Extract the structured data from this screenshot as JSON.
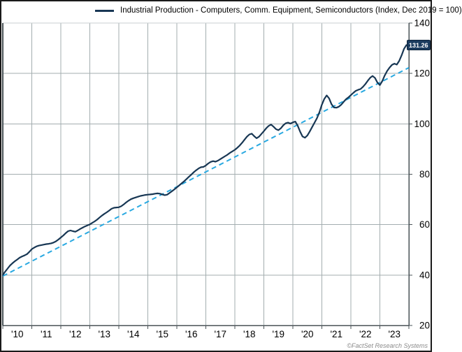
{
  "legend": {
    "label": "Industrial Production - Computers, Comm. Equipment, Semiconductors (Index, Dec 2019 = 100)"
  },
  "footer": {
    "copyright": "©FactSet Research Systems"
  },
  "colors": {
    "series": "#183754",
    "trend": "#29A9E1",
    "grid": "#A3ADAF",
    "grid_top": "#C9CFD1",
    "axis": "#4A5357",
    "badge_bg": "#1B3C5F",
    "badge_border": "#0F263D",
    "label": "#000000"
  },
  "chart_data": {
    "type": "line",
    "title": "Industrial Production - Computers, Comm. Equipment, Semiconductors (Index, Dec 2019 = 100)",
    "xlabel": "",
    "ylabel": "",
    "x_range": [
      2010,
      2024
    ],
    "y_range": [
      20,
      140
    ],
    "grid": true,
    "legend_position": "top",
    "y_ticks": {
      "values": [
        20,
        40,
        60,
        80,
        100,
        120,
        140
      ],
      "labels": [
        "20",
        "40",
        "60",
        "80",
        "100",
        "120",
        "140"
      ]
    },
    "x_ticks": {
      "centers": [
        2010.5,
        2011.5,
        2012.5,
        2013.5,
        2014.5,
        2015.5,
        2016.5,
        2017.5,
        2018.5,
        2019.5,
        2020.5,
        2021.5,
        2022.5,
        2023.5
      ],
      "labels": [
        "'10",
        "'11",
        "'12",
        "'13",
        "'14",
        "'15",
        "'16",
        "'17",
        "'18",
        "'19",
        "'20",
        "'21",
        "'22",
        "'23"
      ],
      "gridline_years": [
        2010,
        2011,
        2012,
        2013,
        2014,
        2015,
        2016,
        2017,
        2018,
        2019,
        2020,
        2021,
        2022,
        2023,
        2024
      ]
    },
    "last_value": {
      "label": "131.26",
      "value": 131.26
    },
    "series": [
      {
        "name": "Industrial Production - Computers, Comm. Equipment, Semiconductors",
        "index_note": "Index, Dec 2019 = 100",
        "x_start": 2010.0,
        "x_step_months": 1,
        "values": [
          40.0,
          41.4,
          42.6,
          43.8,
          44.7,
          45.5,
          46.2,
          46.9,
          47.4,
          47.8,
          48.3,
          49.2,
          50.3,
          50.9,
          51.4,
          51.7,
          51.9,
          52.1,
          52.3,
          52.4,
          52.6,
          52.9,
          53.4,
          54.1,
          54.9,
          55.7,
          56.6,
          57.4,
          57.7,
          57.4,
          57.2,
          57.7,
          58.3,
          58.8,
          59.3,
          59.7,
          60.1,
          60.7,
          61.3,
          62.0,
          62.8,
          63.6,
          64.3,
          64.9,
          65.6,
          66.3,
          66.7,
          66.8,
          66.9,
          67.3,
          68.0,
          68.8,
          69.5,
          70.1,
          70.5,
          70.8,
          71.1,
          71.4,
          71.6,
          71.8,
          71.9,
          72.0,
          72.1,
          72.3,
          72.4,
          72.3,
          72.0,
          71.7,
          71.9,
          72.6,
          73.3,
          74.0,
          74.8,
          75.6,
          76.4,
          77.2,
          78.1,
          79.0,
          79.9,
          80.8,
          81.6,
          82.3,
          82.8,
          82.9,
          83.5,
          84.3,
          84.9,
          85.2,
          85.0,
          85.4,
          86.0,
          86.6,
          87.2,
          87.8,
          88.5,
          89.1,
          89.7,
          90.5,
          91.4,
          92.5,
          93.7,
          94.9,
          95.8,
          96.1,
          95.1,
          94.3,
          94.9,
          96.0,
          97.1,
          98.3,
          99.2,
          99.7,
          98.9,
          97.9,
          97.5,
          98.2,
          99.4,
          100.2,
          100.5,
          100.1,
          100.6,
          100.9,
          99.3,
          96.9,
          95.0,
          94.5,
          95.4,
          97.0,
          98.8,
          100.5,
          102.3,
          104.6,
          107.6,
          109.9,
          111.3,
          110.1,
          107.8,
          106.5,
          106.4,
          106.8,
          107.6,
          108.7,
          109.8,
          110.5,
          111.4,
          112.3,
          113.1,
          113.5,
          113.8,
          114.7,
          115.8,
          117.1,
          118.3,
          119.0,
          118.2,
          116.4,
          115.4,
          117.0,
          119.2,
          121.0,
          122.3,
          123.4,
          123.9,
          123.5,
          125.0,
          127.2,
          129.8,
          131.26
        ]
      }
    ],
    "trend_line": {
      "style": "dashed",
      "points": [
        [
          2010.0,
          39.6
        ],
        [
          2024.0,
          122.3
        ]
      ]
    }
  }
}
